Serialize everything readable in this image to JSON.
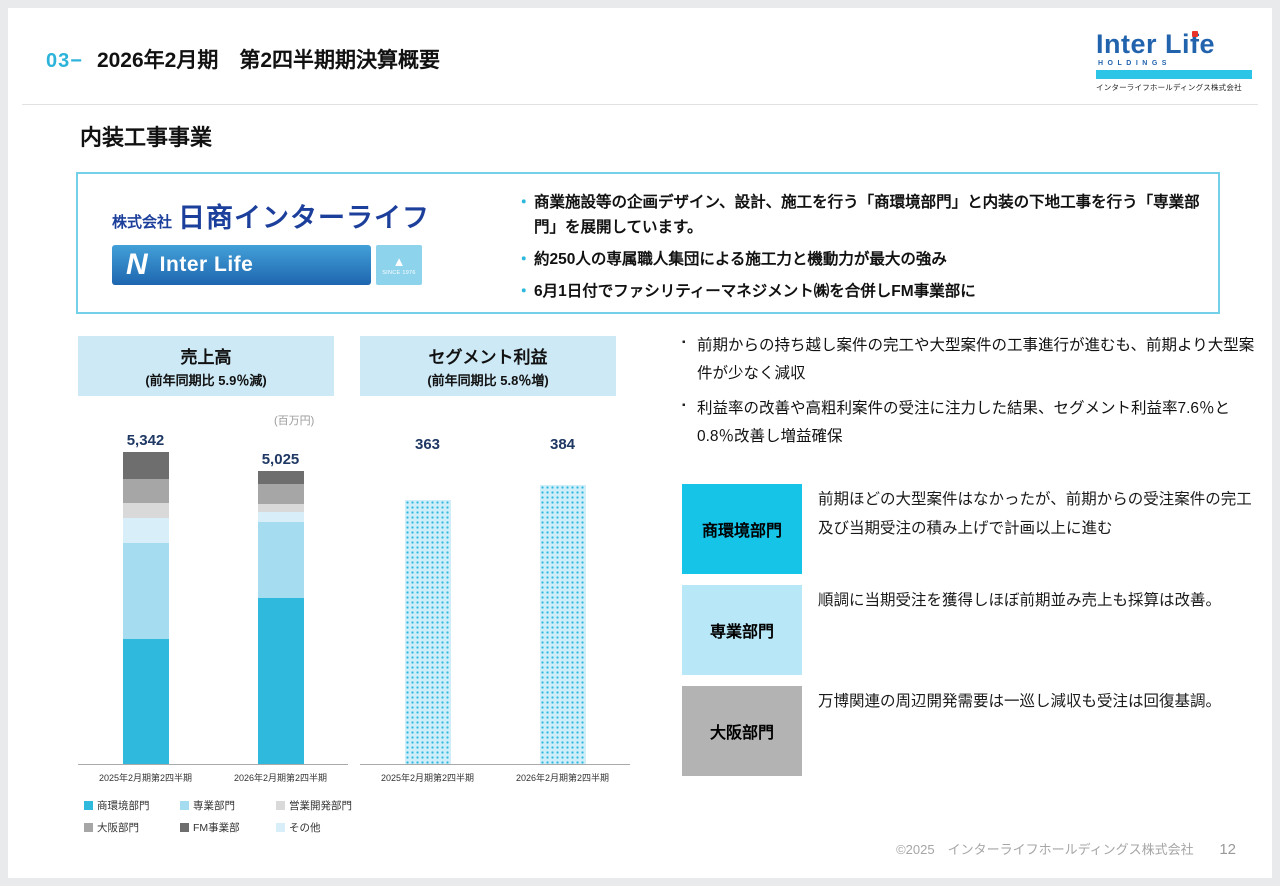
{
  "ui": {
    "dot": "・",
    "square": "▪",
    "triangle": "▲"
  },
  "header": {
    "number": "03−",
    "title": "2026年2月期　第2四半期期決算概要"
  },
  "brand_logo": {
    "name": "Inter Life",
    "holdings": "HOLDINGS",
    "company": "インターライフホールディングス株式会社"
  },
  "section": {
    "title": "内装工事事業"
  },
  "company_box": {
    "prefix": "株式会社",
    "name": "日商インターライフ",
    "sub_logo": {
      "n": "N",
      "text": "Inter Life",
      "since": "SINCE 1976"
    },
    "bullets": [
      "商業施設等の企画デザイン、設計、施工を行う「商環境部門」と内装の下地工事を行う「専業部門」を展開しています。",
      "約250人の専属職人集団による施工力と機動力が最大の強み",
      "6月1日付でファシリティーマネジメント㈱を合併しFM事業部に"
    ]
  },
  "chart_data": [
    {
      "type": "bar",
      "variant": "stacked",
      "title": "売上高",
      "subtitle": "(前年同期比 5.9％減)",
      "unit": "(百万円)",
      "categories": [
        "2025年2月期第2四半期",
        "2026年2月期第2四半期"
      ],
      "totals": [
        5342,
        5025
      ],
      "totals_label": [
        "5,342",
        "5,025"
      ],
      "ylim": [
        0,
        5600
      ],
      "series": [
        {
          "name": "商環境部門",
          "color": "#2fbadd",
          "values": [
            2150,
            2850
          ]
        },
        {
          "name": "専業部門",
          "color": "#a6dcf0",
          "values": [
            1630,
            1300
          ]
        },
        {
          "name": "その他",
          "color": "#d8eef8",
          "values": [
            430,
            170
          ]
        },
        {
          "name": "営業開発部門",
          "color": "#d9d9d9",
          "values": [
            260,
            140
          ]
        },
        {
          "name": "大阪部門",
          "color": "#a6a6a6",
          "values": [
            410,
            345
          ]
        },
        {
          "name": "FM事業部",
          "color": "#6e6e6e",
          "values": [
            462,
            220
          ]
        }
      ],
      "legend_order": [
        "商環境部門",
        "専業部門",
        "営業開発部門",
        "大阪部門",
        "FM事業部",
        "その他"
      ],
      "legend_position": "bottom",
      "grid": false
    },
    {
      "type": "bar",
      "title": "セグメント利益",
      "subtitle": "(前年同期比 5.8％増)",
      "categories": [
        "2025年2月期第2四半期",
        "2026年2月期第2四半期"
      ],
      "values": [
        363,
        384
      ],
      "value_labels": [
        "363",
        "384"
      ],
      "ylim": [
        0,
        450
      ],
      "bar_style": "dotted-cyan",
      "grid": false
    }
  ],
  "analysis": {
    "bullets": [
      "前期からの持ち越し案件の完工や大型案件の工事進行が進むも、前期より大型案件が少なく減収",
      "利益率の改善や高粗利案件の受注に注力した結果、セグメント利益率7.6％と0.8％改善し増益確保"
    ]
  },
  "departments": [
    {
      "label": "商環境部門",
      "color": "#16c4e8",
      "text": "前期ほどの大型案件はなかったが、前期からの受注案件の完工及び当期受注の積み上げで計画以上に進む"
    },
    {
      "label": "専業部門",
      "color": "#b8e7f7",
      "text": "順調に当期受注を獲得しほぼ前期並み売上も採算は改善。"
    },
    {
      "label": "大阪部門",
      "color": "#b3b3b3",
      "text": "万博関連の周辺開発需要は一巡し減収も受注は回復基調。"
    }
  ],
  "footer": {
    "copyright": "©2025　インターライフホールディングス株式会社",
    "page": "12"
  }
}
